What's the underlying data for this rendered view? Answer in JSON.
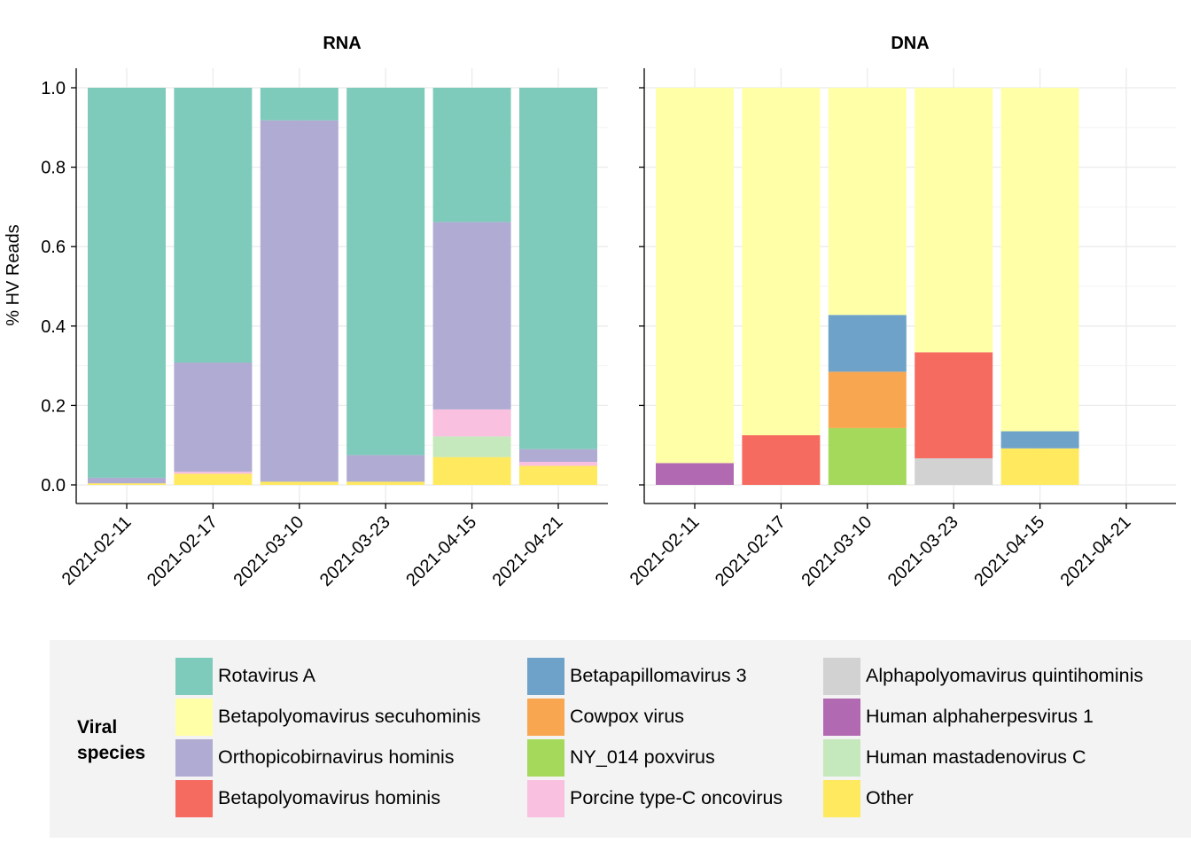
{
  "chart_data": {
    "type": "bar",
    "stacked": true,
    "ylabel": "% HV Reads",
    "ylim": [
      0,
      1
    ],
    "yticks": [
      "0.0",
      "0.2",
      "0.4",
      "0.6",
      "0.8",
      "1.0"
    ],
    "grid": true,
    "legend_position": "bottom",
    "legend_title": "Viral\nspecies",
    "categories": [
      "2021-02-11",
      "2021-02-17",
      "2021-03-10",
      "2021-03-23",
      "2021-04-15",
      "2021-04-21"
    ],
    "species": [
      {
        "name": "Rotavirus A",
        "color": "#7fcbbb"
      },
      {
        "name": "Betapolyomavirus secuhominis",
        "color": "#ffffa8"
      },
      {
        "name": "Orthopicobirnavirus hominis",
        "color": "#b0abd2"
      },
      {
        "name": "Betapolyomavirus hominis",
        "color": "#f66b60"
      },
      {
        "name": "Betapapillomavirus 3",
        "color": "#6ea2c9"
      },
      {
        "name": "Cowpox virus",
        "color": "#f9a651"
      },
      {
        "name": "NY_014 poxvirus",
        "color": "#a5d95c"
      },
      {
        "name": "Porcine type-C oncovirus",
        "color": "#f9c0e0"
      },
      {
        "name": "Alphapolyomavirus quintihominis",
        "color": "#d2d2d2"
      },
      {
        "name": "Human alphaherpesvirus 1",
        "color": "#b16ab1"
      },
      {
        "name": "Human mastadenovirus C",
        "color": "#c5e8bd"
      },
      {
        "name": "Other",
        "color": "#ffe95f"
      }
    ],
    "stack_order_bottom_to_top": [
      "Other",
      "Human mastadenovirus C",
      "Human alphaherpesvirus 1",
      "Alphapolyomavirus quintihominis",
      "Porcine type-C oncovirus",
      "NY_014 poxvirus",
      "Cowpox virus",
      "Betapapillomavirus 3",
      "Betapolyomavirus hominis",
      "Orthopicobirnavirus hominis",
      "Betapolyomavirus secuhominis",
      "Rotavirus A"
    ],
    "panels": [
      {
        "title": "RNA",
        "bars": {
          "2021-02-11": {
            "Other": 0.004,
            "Orthopicobirnavirus hominis": 0.014,
            "Rotavirus A": 0.982
          },
          "2021-02-17": {
            "Other": 0.028,
            "Porcine type-C oncovirus": 0.005,
            "Orthopicobirnavirus hominis": 0.275,
            "Rotavirus A": 0.692
          },
          "2021-03-10": {
            "Other": 0.008,
            "Orthopicobirnavirus hominis": 0.91,
            "Rotavirus A": 0.082
          },
          "2021-03-23": {
            "Other": 0.008,
            "Orthopicobirnavirus hominis": 0.067,
            "Rotavirus A": 0.925
          },
          "2021-04-15": {
            "Other": 0.07,
            "Human mastadenovirus C": 0.052,
            "Porcine type-C oncovirus": 0.068,
            "Orthopicobirnavirus hominis": 0.472,
            "Rotavirus A": 0.338
          },
          "2021-04-21": {
            "Other": 0.048,
            "Porcine type-C oncovirus": 0.01,
            "Orthopicobirnavirus hominis": 0.032,
            "Rotavirus A": 0.91
          }
        }
      },
      {
        "title": "DNA",
        "bars": {
          "2021-02-11": {
            "Human alphaherpesvirus 1": 0.055,
            "Betapolyomavirus secuhominis": 0.945
          },
          "2021-02-17": {
            "Betapolyomavirus hominis": 0.125,
            "Betapolyomavirus secuhominis": 0.875
          },
          "2021-03-10": {
            "NY_014 poxvirus": 0.143,
            "Cowpox virus": 0.142,
            "Betapapillomavirus 3": 0.143,
            "Betapolyomavirus secuhominis": 0.572
          },
          "2021-03-23": {
            "Alphapolyomavirus quintihominis": 0.067,
            "Betapolyomavirus hominis": 0.267,
            "Betapolyomavirus secuhominis": 0.666
          },
          "2021-04-15": {
            "Other": 0.092,
            "Betapapillomavirus 3": 0.043,
            "Betapolyomavirus secuhominis": 0.865
          },
          "2021-04-21": {}
        }
      }
    ]
  }
}
